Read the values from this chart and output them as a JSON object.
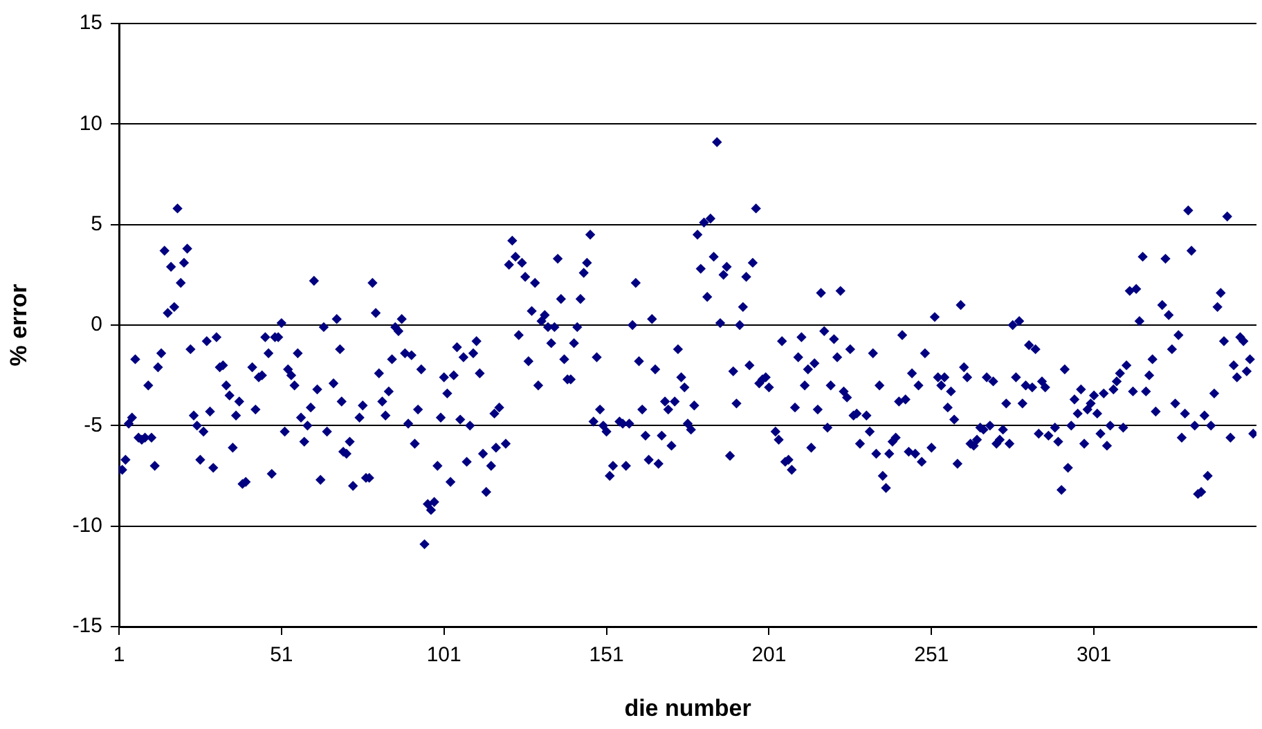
{
  "chart_data": {
    "type": "scatter",
    "xlabel": "die number",
    "ylabel": "% error",
    "xlim": [
      1,
      351
    ],
    "xticks": [
      1,
      51,
      101,
      151,
      201,
      251,
      301
    ],
    "ylim": [
      -15,
      15
    ],
    "yticks": [
      -15,
      -10,
      -5,
      0,
      5,
      10,
      15
    ],
    "grid": "y",
    "legend": false,
    "marker": "diamond",
    "series": [
      {
        "color": "#000080",
        "x": [
          1,
          2,
          3,
          4,
          5,
          6,
          7,
          8,
          9,
          10,
          11,
          12,
          13,
          14,
          15,
          16,
          17,
          18,
          19,
          20,
          21,
          22,
          23,
          24,
          25,
          26,
          27,
          28,
          29,
          30,
          31,
          32,
          33,
          34,
          35,
          36,
          37,
          38,
          39,
          40,
          42,
          43,
          44,
          45,
          46,
          47,
          48,
          49,
          50,
          51,
          52,
          53,
          54,
          55,
          56,
          57,
          58,
          59,
          60,
          61,
          62,
          63,
          64,
          65,
          67,
          68,
          69,
          69.5,
          70,
          71,
          72,
          73,
          75,
          76,
          77,
          78,
          79,
          80,
          81,
          82,
          83,
          84,
          85,
          86,
          87,
          88,
          89,
          90,
          91,
          92,
          93,
          94,
          95,
          96,
          97,
          98,
          99,
          100,
          101,
          102,
          103,
          104,
          105,
          106,
          107,
          108,
          109,
          110,
          111,
          112,
          113,
          114,
          115.5,
          116.5,
          117,
          118,
          120,
          121,
          122,
          123,
          124,
          125,
          126,
          127,
          128,
          129,
          130,
          131,
          132,
          133,
          134,
          135,
          136,
          137,
          138,
          139,
          140,
          141,
          142,
          143,
          144,
          145,
          146,
          147,
          148,
          149,
          150,
          151,
          152,
          153,
          155,
          156,
          157,
          158,
          159,
          160,
          161,
          162,
          163,
          164,
          165,
          166,
          167,
          168,
          169,
          170,
          171,
          172,
          173,
          174,
          175,
          176,
          177,
          178,
          179,
          180,
          181,
          182,
          183,
          184,
          185,
          186,
          187,
          188,
          189,
          190,
          191,
          192,
          193,
          194,
          195,
          196,
          197,
          198,
          199,
          200,
          201,
          203,
          204,
          205,
          206,
          207,
          208,
          209,
          210,
          211,
          212,
          213,
          214,
          215,
          216,
          217,
          218,
          219,
          220,
          221,
          222,
          223,
          224,
          225,
          226,
          227,
          228,
          229,
          231,
          232,
          233,
          234,
          235,
          236,
          237,
          238,
          239,
          240,
          241,
          242,
          243,
          244,
          245,
          246,
          247,
          248,
          249,
          251,
          252,
          253,
          254,
          255,
          256,
          257,
          258,
          259,
          260,
          261,
          262,
          263,
          264,
          265,
          266,
          267,
          268,
          269,
          270,
          271,
          272,
          273,
          274,
          275,
          276,
          277,
          278,
          279,
          280,
          281,
          282,
          283,
          284,
          285,
          286,
          287,
          289,
          290,
          291,
          292,
          293,
          294,
          295,
          296,
          297,
          298,
          299,
          300,
          301,
          302,
          303,
          304,
          305,
          306,
          307,
          308,
          309,
          310,
          311,
          312,
          313,
          314,
          315,
          316,
          317,
          318,
          319,
          320,
          322,
          323,
          324,
          325,
          326,
          327,
          328,
          329,
          330,
          331,
          332,
          333,
          334,
          335,
          336,
          337,
          338,
          339,
          340,
          341,
          342,
          343,
          344,
          345,
          346,
          347,
          348,
          349,
          350
        ],
        "values": [
          -7.2,
          -7.2,
          -6.7,
          -4.9,
          -4.6,
          -1.7,
          -5.6,
          -5.7,
          -5.6,
          -3.0,
          -5.6,
          -7.0,
          -2.1,
          -1.4,
          3.7,
          0.6,
          2.9,
          0.9,
          5.8,
          2.1,
          3.1,
          3.8,
          -1.2,
          -4.5,
          -5.0,
          -6.7,
          -5.3,
          -0.8,
          -4.3,
          -7.1,
          -0.6,
          -2.1,
          -2.0,
          -3.0,
          -3.5,
          -6.1,
          -4.5,
          -3.8,
          -7.9,
          -7.8,
          -2.1,
          -4.2,
          -2.6,
          -2.5,
          -0.6,
          -1.4,
          -7.4,
          -0.6,
          -0.6,
          0.1,
          -5.3,
          -2.2,
          -2.5,
          -3.0,
          -1.4,
          -4.6,
          -5.8,
          -5.0,
          -4.1,
          2.2,
          -3.2,
          -7.7,
          -0.1,
          -5.3,
          -2.9,
          0.3,
          -1.2,
          -3.8,
          -6.3,
          -6.4,
          -5.8,
          -8.0,
          -4.6,
          -4.0,
          -7.6,
          -7.6,
          2.1,
          0.6,
          -2.4,
          -3.8,
          -4.5,
          -3.3,
          -1.7,
          -0.1,
          -0.3,
          0.3,
          -1.4,
          -4.9,
          -1.5,
          -5.9,
          -4.2,
          -2.2,
          -10.9,
          -8.9,
          -9.2,
          -8.8,
          -7.0,
          -4.6,
          -2.6,
          -3.4,
          -7.8,
          -2.5,
          -1.1,
          -4.7,
          -1.6,
          -6.8,
          -5.0,
          -1.4,
          -0.8,
          -2.4,
          -6.4,
          -8.3,
          -7.0,
          -4.4,
          -6.1,
          -4.1,
          -5.9,
          3.0,
          4.2,
          3.4,
          -0.5,
          3.1,
          2.4,
          -1.8,
          0.7,
          2.1,
          -3.0,
          0.2,
          0.5,
          -0.1,
          -0.9,
          -0.1,
          3.3,
          1.3,
          -1.7,
          -2.7,
          -2.7,
          -0.9,
          -0.1,
          1.3,
          2.6,
          3.1,
          4.5,
          -4.8,
          -1.6,
          -4.2,
          -5.0,
          -5.3,
          -7.5,
          -7.0,
          -4.8,
          -4.9,
          -7.0,
          -4.9,
          0.0,
          2.1,
          -1.8,
          -4.2,
          -5.5,
          -6.7,
          0.3,
          -2.2,
          -6.9,
          -5.5,
          -3.8,
          -4.2,
          -6.0,
          -3.8,
          -1.2,
          -2.6,
          -3.1,
          -4.9,
          -5.2,
          -4.0,
          4.5,
          2.8,
          5.1,
          1.4,
          5.3,
          3.4,
          9.1,
          0.1,
          2.5,
          2.9,
          -6.5,
          -2.3,
          -3.9,
          0.0,
          0.9,
          2.4,
          -2.0,
          3.1,
          5.8,
          -2.9,
          -2.7,
          -2.6,
          -3.1,
          -5.3,
          -5.7,
          -0.8,
          -6.8,
          -6.7,
          -7.2,
          -4.1,
          -1.6,
          -0.6,
          -3.0,
          -2.2,
          -6.1,
          -1.9,
          -4.2,
          1.6,
          -0.3,
          -5.1,
          -3.0,
          -0.7,
          -1.6,
          1.7,
          -3.3,
          -3.6,
          -1.2,
          -4.5,
          -4.4,
          -5.9,
          -4.5,
          -5.3,
          -1.4,
          -6.4,
          -3.0,
          -7.5,
          -8.1,
          -6.4,
          -5.8,
          -5.6,
          -3.8,
          -0.5,
          -3.7,
          -6.3,
          -2.4,
          -6.4,
          -3.0,
          -6.8,
          -1.4,
          -6.1,
          0.4,
          -2.6,
          -3.0,
          -2.6,
          -4.1,
          -3.3,
          -4.7,
          -6.9,
          1.0,
          -2.1,
          -2.6,
          -5.9,
          -6.0,
          -5.7,
          -5.1,
          -5.2,
          -2.6,
          -5.0,
          -2.8,
          -5.9,
          -5.7,
          -5.2,
          -3.9,
          -5.9,
          0.0,
          -2.6,
          0.2,
          -3.9,
          -3.0,
          -1.0,
          -3.1,
          -1.2,
          -5.4,
          -2.8,
          -3.1,
          -5.5,
          -5.1,
          -5.8,
          -8.2,
          -2.2,
          -7.1,
          -5.0,
          -3.7,
          -4.4,
          -3.2,
          -5.9,
          -4.2,
          -3.9,
          -3.5,
          -4.4,
          -5.4,
          -3.4,
          -6.0,
          -5.0,
          -3.2,
          -2.8,
          -2.4,
          -5.1,
          -2.0,
          1.7,
          -3.3,
          1.8,
          0.2,
          3.4,
          -3.3,
          -2.5,
          -1.7,
          -4.3,
          1.0,
          3.3,
          0.5,
          -1.2,
          -3.9,
          -0.5,
          -5.6,
          -4.4,
          5.7,
          3.7,
          -5.0,
          -8.4,
          -8.3,
          -4.5,
          -7.5,
          -5.0,
          -3.4,
          0.9,
          1.6,
          -0.8,
          5.4,
          -5.6,
          -2.0,
          -2.6,
          -0.6,
          -0.8,
          -2.3,
          -1.7,
          -5.4
        ]
      }
    ]
  }
}
